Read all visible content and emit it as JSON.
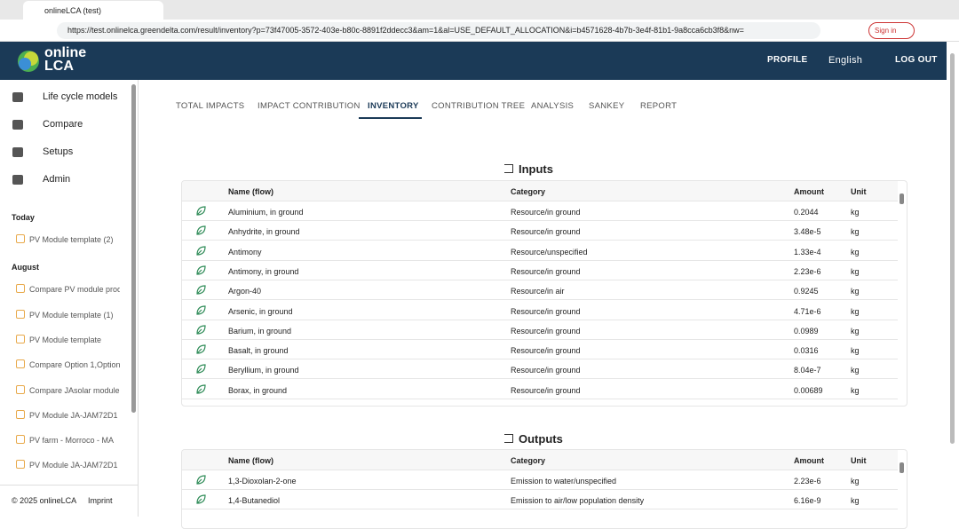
{
  "browser": {
    "tab_title": "onlineLCA (test)",
    "url": "https://test.onlinelca.greendelta.com/result/inventory?p=73f47005-3572-403e-b80c-8891f2ddecc3&am=1&al=USE_DEFAULT_ALLOCATION&i=b4571628-4b7b-3e4f-81b1-9a8cca6cb3f8&nw=",
    "sign_in": "Sign in"
  },
  "header": {
    "logo_top": "online",
    "logo_bottom": "LCA",
    "profile": "PROFILE",
    "language": "English",
    "logout": "LOG OUT"
  },
  "sidebar": {
    "menu": [
      "Life cycle models",
      "Compare",
      "Setups",
      "Admin"
    ],
    "sections": [
      {
        "title": "Today",
        "items": [
          "PV Module template (2)"
        ]
      },
      {
        "title": "August",
        "items": [
          "Compare PV module prod",
          "PV Module template (1)",
          "PV Module template",
          "Compare Option 1,Option",
          "Compare JAsolar module",
          "PV Module JA-JAM72D1",
          "PV farm - Morroco - MA",
          "PV Module JA-JAM72D1"
        ]
      }
    ],
    "footer": {
      "copyright": "© 2025 onlineLCA",
      "imprint": "Imprint"
    }
  },
  "tabs": [
    "TOTAL IMPACTS",
    "IMPACT CONTRIBUTION",
    "INVENTORY",
    "CONTRIBUTION TREE",
    "ANALYSIS",
    "SANKEY",
    "REPORT"
  ],
  "inputs": {
    "title": "Inputs",
    "columns": [
      "Name (flow)",
      "Category",
      "Amount",
      "Unit"
    ],
    "rows": [
      [
        "Aluminium, in ground",
        "Resource/in ground",
        "0.2044",
        "kg"
      ],
      [
        "Anhydrite, in ground",
        "Resource/in ground",
        "3.48e-5",
        "kg"
      ],
      [
        "Antimony",
        "Resource/unspecified",
        "1.33e-4",
        "kg"
      ],
      [
        "Antimony, in ground",
        "Resource/in ground",
        "2.23e-6",
        "kg"
      ],
      [
        "Argon-40",
        "Resource/in air",
        "0.9245",
        "kg"
      ],
      [
        "Arsenic, in ground",
        "Resource/in ground",
        "4.71e-6",
        "kg"
      ],
      [
        "Barium, in ground",
        "Resource/in ground",
        "0.0989",
        "kg"
      ],
      [
        "Basalt, in ground",
        "Resource/in ground",
        "0.0316",
        "kg"
      ],
      [
        "Beryllium, in ground",
        "Resource/in ground",
        "8.04e-7",
        "kg"
      ],
      [
        "Borax, in ground",
        "Resource/in ground",
        "0.00689",
        "kg"
      ]
    ]
  },
  "outputs": {
    "title": "Outputs",
    "columns": [
      "Name (flow)",
      "Category",
      "Amount",
      "Unit"
    ],
    "rows": [
      [
        "1,3-Dioxolan-2-one",
        "Emission to water/unspecified",
        "2.23e-6",
        "kg"
      ],
      [
        "1,4-Butanediol",
        "Emission to air/low population density",
        "6.16e-9",
        "kg"
      ]
    ]
  }
}
